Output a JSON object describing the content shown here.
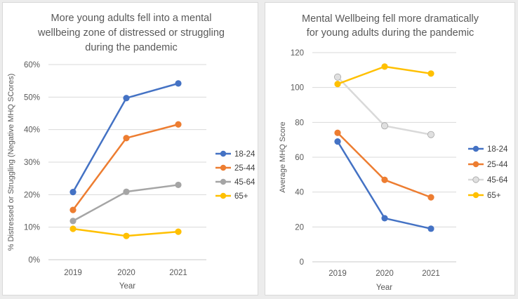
{
  "colors": {
    "18-24": "#4472C4",
    "25-44": "#ED7D31",
    "45-64": "#A5A5A5",
    "65+": "#FFC000",
    "45-64_right_line": "#D9D9D9",
    "45-64_right_marker": "#E0E0E0"
  },
  "chart_data": [
    {
      "type": "line",
      "title_lines": [
        "More young adults fell into a mental",
        "wellbeing zone of distressed or struggling",
        "during the pandemic"
      ],
      "xlabel": "Year",
      "ylabel": "% Distressed or Struggling (Negative MHQ SCores)",
      "categories": [
        "2019",
        "2020",
        "2021"
      ],
      "ylim": [
        0,
        60
      ],
      "yticks": [
        0,
        10,
        20,
        30,
        40,
        50,
        60
      ],
      "ytick_labels": [
        "0%",
        "10%",
        "20%",
        "30%",
        "40%",
        "50%",
        "60%"
      ],
      "grid": true,
      "legend_position": "right",
      "series": [
        {
          "name": "18-24",
          "values": [
            20.8,
            49.7,
            54.2
          ]
        },
        {
          "name": "25-44",
          "values": [
            15.3,
            37.4,
            41.6
          ]
        },
        {
          "name": "45-64",
          "values": [
            11.9,
            20.9,
            23.0
          ]
        },
        {
          "name": "65+",
          "values": [
            9.5,
            7.3,
            8.6
          ]
        }
      ]
    },
    {
      "type": "line",
      "title_lines": [
        "Mental Wellbeing fell more dramatically",
        "for young adults during the pandemic"
      ],
      "xlabel": "Year",
      "ylabel": "Average MHQ Score",
      "categories": [
        "2019",
        "2020",
        "2021"
      ],
      "ylim": [
        0,
        120
      ],
      "yticks": [
        0,
        20,
        40,
        60,
        80,
        100,
        120
      ],
      "ytick_labels": [
        "0",
        "20",
        "40",
        "60",
        "80",
        "100",
        "120"
      ],
      "grid": true,
      "legend_position": "right",
      "series": [
        {
          "name": "18-24",
          "values": [
            69,
            25,
            19
          ]
        },
        {
          "name": "25-44",
          "values": [
            74,
            47,
            37
          ]
        },
        {
          "name": "45-64",
          "values": [
            106,
            78,
            73
          ]
        },
        {
          "name": "65+",
          "values": [
            102,
            112,
            108
          ]
        }
      ]
    }
  ]
}
